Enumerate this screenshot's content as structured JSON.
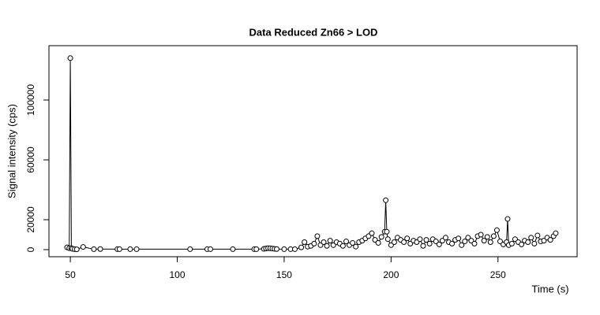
{
  "chart_data": {
    "type": "scatter",
    "title": "Data Reduced Zn66 > LOD",
    "x_label": "Time (s)",
    "y_label": "Signal intensity (cps)",
    "lines": true,
    "color": "#000000",
    "x": [
      48.5,
      49.5,
      50,
      50.5,
      51,
      52,
      53,
      56,
      61,
      64,
      72,
      73,
      78,
      81,
      106,
      114,
      115.5,
      126,
      136,
      137,
      140.5,
      141.5,
      142.5,
      143.5,
      144.5,
      145.5,
      146.5,
      150,
      153,
      155,
      158,
      159.5,
      161,
      162.5,
      164,
      165.5,
      167,
      168.5,
      170,
      171.5,
      173,
      174.5,
      176,
      177.5,
      179,
      180.5,
      182,
      183.5,
      185,
      186.5,
      188,
      189.5,
      191,
      192.5,
      194,
      195.5,
      197,
      197.5,
      198,
      198.5,
      200,
      201.5,
      203,
      204.5,
      206,
      207.5,
      209,
      210.5,
      212,
      213.5,
      215,
      216.5,
      218,
      219.5,
      221,
      222.5,
      224,
      225.5,
      227,
      228.5,
      230,
      231.5,
      233,
      234.5,
      236,
      237.5,
      239,
      240.5,
      242,
      243.5,
      245,
      246.5,
      248,
      249.5,
      251,
      252.5,
      254,
      254.5,
      255,
      256.5,
      258,
      259.5,
      261,
      262.5,
      264,
      265.5,
      267,
      268.5,
      270,
      271.5,
      273,
      274.5,
      276,
      277
    ],
    "values": [
      1500,
      1000,
      128000,
      1000,
      500,
      300,
      200,
      1800,
      300,
      400,
      300,
      300,
      300,
      300,
      300,
      300,
      300,
      300,
      300,
      300,
      500,
      800,
      1000,
      900,
      700,
      500,
      400,
      300,
      300,
      300,
      1500,
      5000,
      2000,
      2500,
      4000,
      9000,
      3000,
      5000,
      2500,
      6000,
      3000,
      5000,
      4000,
      2500,
      5500,
      3000,
      4500,
      2000,
      5000,
      6000,
      7500,
      9000,
      11000,
      6500,
      4500,
      8500,
      12000,
      33000,
      12000,
      7000,
      3000,
      5000,
      8000,
      6500,
      5000,
      7500,
      4000,
      6000,
      5000,
      7000,
      2500,
      6500,
      4000,
      7000,
      5500,
      3500,
      6000,
      8000,
      5000,
      4000,
      6500,
      7500,
      3000,
      5500,
      8000,
      6000,
      4000,
      9000,
      10000,
      6000,
      8500,
      5000,
      9000,
      13000,
      5500,
      3500,
      5000,
      20500,
      3000,
      4000,
      7000,
      5000,
      3500,
      6000,
      5000,
      8000,
      4000,
      9500,
      5500,
      6000,
      8000,
      6500,
      9000,
      11000
    ],
    "xlim": [
      40,
      287
    ],
    "ylim": [
      -4737,
      136316
    ],
    "xticks": [
      50,
      100,
      150,
      200,
      250
    ],
    "yticks": [
      0,
      20000,
      60000,
      100000
    ]
  }
}
